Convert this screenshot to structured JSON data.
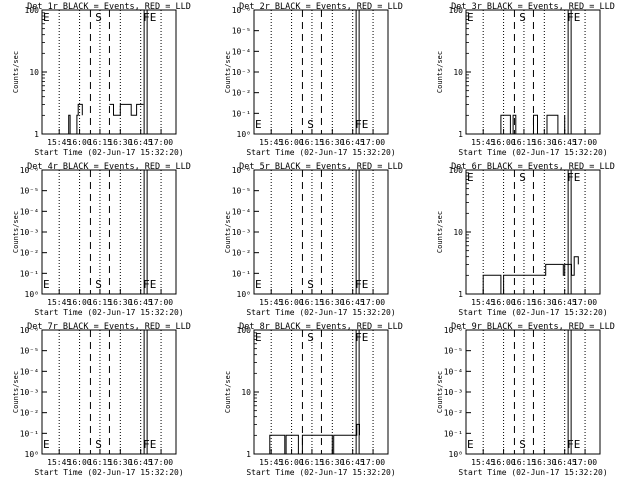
{
  "chart_data": [
    {
      "type": "line",
      "title": "Det 1r BLACK = Events, RED = LLD",
      "ylabel": "Counts/sec",
      "xlabel": "Start Time (02-Jun-17 15:32:20)",
      "yscale": "log",
      "ylim": [
        1,
        100
      ],
      "yticks": [
        "1",
        "10",
        "100"
      ],
      "xticks": [
        "15:45",
        "16:00",
        "16:15",
        "16:30",
        "16:45",
        "17:00"
      ],
      "markers": [
        {
          "label": "E",
          "time": "15:35"
        },
        {
          "label": "S",
          "time": "16:14"
        },
        {
          "label": "FE",
          "time": "16:49"
        }
      ],
      "series": [
        {
          "x": [
            "15:40",
            "15:52",
            "15:53",
            "15:58",
            "15:59",
            "16:02"
          ],
          "y": [
            1,
            2,
            1,
            2,
            3,
            2
          ]
        },
        {
          "x": [
            "16:22",
            "16:25",
            "16:30",
            "16:38",
            "16:42",
            "16:47"
          ],
          "y": [
            3,
            2,
            3,
            2,
            3,
            3
          ]
        }
      ]
    },
    {
      "type": "line",
      "title": "Det 2r BLACK = Events, RED = LLD",
      "ylabel": "Counts/sec",
      "xlabel": "Start Time (02-Jun-17 15:32:20)",
      "yscale": "log",
      "ylim": [
        1,
        1e-06
      ],
      "yticks": [
        "10⁰",
        "10⁻¹",
        "10⁻²",
        "10⁻³",
        "10⁻⁴",
        "10⁻⁵",
        "10⁻⁶"
      ],
      "xticks": [
        "15:45",
        "16:00",
        "16:15",
        "16:30",
        "16:45",
        "17:00"
      ],
      "markers": [
        {
          "label": "E",
          "time": "15:35"
        },
        {
          "label": "S",
          "time": "16:14"
        },
        {
          "label": "FE",
          "time": "16:49"
        }
      ],
      "series": []
    },
    {
      "type": "line",
      "title": "Det 3r BLACK = Events, RED = LLD",
      "ylabel": "Counts/sec",
      "xlabel": "Start Time (02-Jun-17 15:32:20)",
      "yscale": "log",
      "ylim": [
        1,
        100
      ],
      "yticks": [
        "1",
        "10",
        "100"
      ],
      "xticks": [
        "15:45",
        "16:00",
        "16:15",
        "16:30",
        "16:45",
        "17:00"
      ],
      "markers": [
        {
          "label": "E",
          "time": "15:35"
        },
        {
          "label": "S",
          "time": "16:14"
        },
        {
          "label": "FE",
          "time": "16:49"
        }
      ],
      "series": [
        {
          "x": [
            "15:57",
            "15:58",
            "16:05",
            "16:07",
            "16:09",
            "16:22",
            "16:25",
            "16:32",
            "16:40",
            "16:45"
          ],
          "y": [
            1,
            2,
            1,
            2,
            1,
            2,
            1,
            2,
            1,
            2
          ]
        }
      ]
    },
    {
      "type": "line",
      "title": "Det 4r BLACK = Events, RED = LLD",
      "ylabel": "Counts/sec",
      "xlabel": "Start Time (02-Jun-17 15:32:20)",
      "yscale": "log",
      "ylim": [
        1,
        1e-06
      ],
      "yticks": [
        "10⁰",
        "10⁻¹",
        "10⁻²",
        "10⁻³",
        "10⁻⁴",
        "10⁻⁵",
        "10⁻⁶"
      ],
      "xticks": [
        "15:45",
        "16:00",
        "16:15",
        "16:30",
        "16:45",
        "17:00"
      ],
      "markers": [
        {
          "label": "E",
          "time": "15:35"
        },
        {
          "label": "S",
          "time": "16:14"
        },
        {
          "label": "FE",
          "time": "16:49"
        }
      ],
      "series": []
    },
    {
      "type": "line",
      "title": "Det 5r BLACK = Events, RED = LLD",
      "ylabel": "Counts/sec",
      "xlabel": "Start Time (02-Jun-17 15:32:20)",
      "yscale": "log",
      "ylim": [
        1,
        1e-06
      ],
      "yticks": [
        "10⁰",
        "10⁻¹",
        "10⁻²",
        "10⁻³",
        "10⁻⁴",
        "10⁻⁵",
        "10⁻⁶"
      ],
      "xticks": [
        "15:45",
        "16:00",
        "16:15",
        "16:30",
        "16:45",
        "17:00"
      ],
      "markers": [
        {
          "label": "E",
          "time": "15:35"
        },
        {
          "label": "S",
          "time": "16:14"
        },
        {
          "label": "FE",
          "time": "16:49"
        }
      ],
      "series": []
    },
    {
      "type": "line",
      "title": "Det 6r BLACK = Events, RED = LLD",
      "ylabel": "Counts/sec",
      "xlabel": "Start Time (02-Jun-17 15:32:20)",
      "yscale": "log",
      "ylim": [
        1,
        100
      ],
      "yticks": [
        "1",
        "10",
        "100"
      ],
      "xticks": [
        "15:45",
        "16:00",
        "16:15",
        "16:30",
        "16:45",
        "17:00"
      ],
      "markers": [
        {
          "label": "E",
          "time": "15:35"
        },
        {
          "label": "S",
          "time": "16:14"
        },
        {
          "label": "FE",
          "time": "16:49"
        }
      ],
      "series": [
        {
          "x": [
            "15:44",
            "15:45",
            "15:58",
            "16:00",
            "16:10",
            "16:11",
            "16:30",
            "16:31",
            "16:44",
            "16:45",
            "16:50",
            "16:52",
            "16:55"
          ],
          "y": [
            1,
            2,
            1,
            2,
            2,
            2,
            2,
            3,
            2,
            3,
            2,
            4,
            3
          ]
        }
      ]
    },
    {
      "type": "line",
      "title": "Det 7r BLACK = Events, RED = LLD",
      "ylabel": "Counts/sec",
      "xlabel": "Start Time (02-Jun-17 15:32:20)",
      "yscale": "log",
      "ylim": [
        1,
        1e-06
      ],
      "yticks": [
        "10⁰",
        "10⁻¹",
        "10⁻²",
        "10⁻³",
        "10⁻⁴",
        "10⁻⁵",
        "10⁻⁶"
      ],
      "xticks": [
        "15:45",
        "16:00",
        "16:15",
        "16:30",
        "16:45",
        "17:00"
      ],
      "markers": [
        {
          "label": "E",
          "time": "15:35"
        },
        {
          "label": "S",
          "time": "16:14"
        },
        {
          "label": "FE",
          "time": "16:49"
        }
      ],
      "series": []
    },
    {
      "type": "line",
      "title": "Det 8r BLACK = Events, RED = LLD",
      "ylabel": "Counts/sec",
      "xlabel": "Start Time (02-Jun-17 15:32:20)",
      "yscale": "log",
      "ylim": [
        1,
        100
      ],
      "yticks": [
        "1",
        "10",
        "100"
      ],
      "xticks": [
        "15:45",
        "16:00",
        "16:15",
        "16:30",
        "16:45",
        "17:00"
      ],
      "markers": [
        {
          "label": "E",
          "time": "15:35"
        },
        {
          "label": "S",
          "time": "16:14"
        },
        {
          "label": "FE",
          "time": "16:49"
        }
      ],
      "series": [
        {
          "x": [
            "15:43",
            "15:44",
            "15:55",
            "15:56",
            "16:05",
            "16:08",
            "16:30",
            "16:31",
            "16:40",
            "16:45",
            "16:48",
            "16:50"
          ],
          "y": [
            1,
            2,
            1,
            2,
            1,
            2,
            1,
            2,
            2,
            2,
            3,
            2
          ]
        }
      ]
    },
    {
      "type": "line",
      "title": "Det 9r BLACK = Events, RED = LLD",
      "ylabel": "Counts/sec",
      "xlabel": "Start Time (02-Jun-17 15:32:20)",
      "yscale": "log",
      "ylim": [
        1,
        1e-06
      ],
      "yticks": [
        "10⁰",
        "10⁻¹",
        "10⁻²",
        "10⁻³",
        "10⁻⁴",
        "10⁻⁵",
        "10⁻⁶"
      ],
      "xticks": [
        "15:45",
        "16:00",
        "16:15",
        "16:30",
        "16:45",
        "17:00"
      ],
      "markers": [
        {
          "label": "E",
          "time": "15:35"
        },
        {
          "label": "S",
          "time": "16:14"
        },
        {
          "label": "FE",
          "time": "16:49"
        }
      ],
      "series": []
    }
  ]
}
